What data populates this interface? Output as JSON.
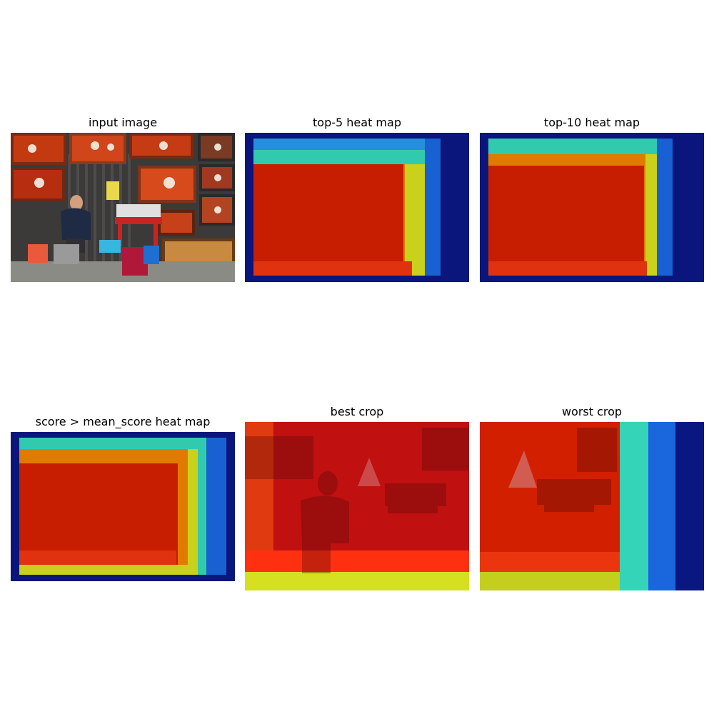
{
  "panels": [
    {
      "id": "input",
      "title": "input image"
    },
    {
      "id": "top5",
      "title": "top-5 heat map"
    },
    {
      "id": "top10",
      "title": "top-10 heat map"
    },
    {
      "id": "mean",
      "title": "score > mean_score heat map"
    },
    {
      "id": "best",
      "title": "best crop"
    },
    {
      "id": "worst",
      "title": "worst crop"
    }
  ],
  "colors": {
    "heat_hot": "#d00000",
    "heat_mid": "#e8e800",
    "heat_cool": "#00d0d0",
    "heat_cold": "#00008f"
  }
}
